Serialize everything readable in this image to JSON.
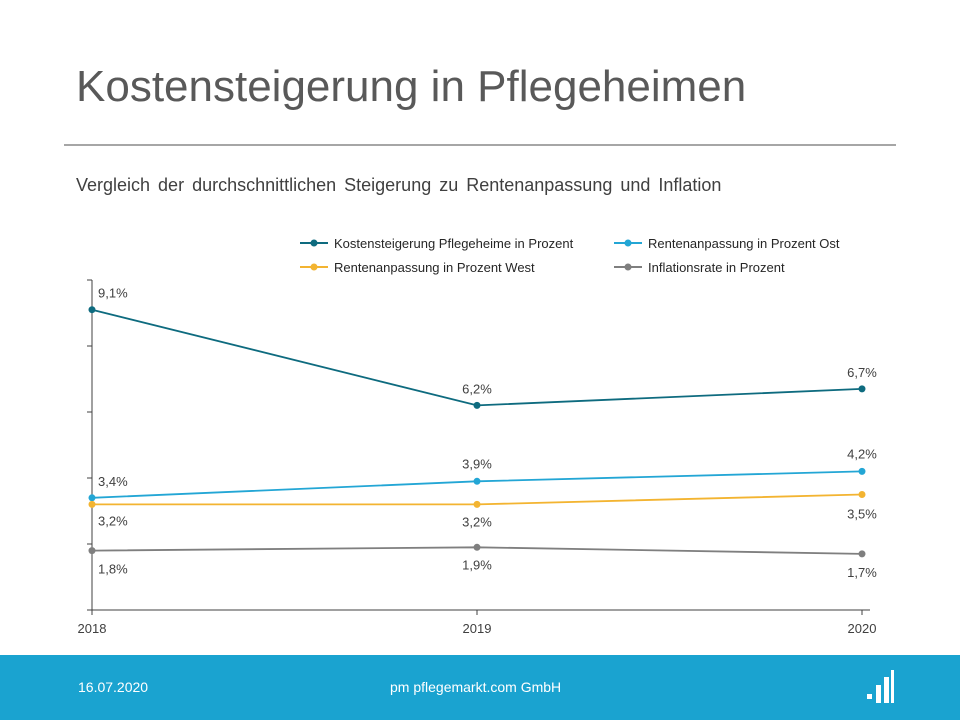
{
  "header": {
    "title": "Kostensteigerung in Pflegeheimen",
    "subtitle": "Vergleich der durchschnittlichen  Steigerung zu Rentenanpassung  und  Inflation"
  },
  "chart_data": {
    "type": "line",
    "categories": [
      "2018",
      "2019",
      "2020"
    ],
    "ylim": [
      0,
      10
    ],
    "grid": false,
    "legend_position": "top-right",
    "series": [
      {
        "name": "Kostensteigerung Pflegeheime in Prozent",
        "color": "#0e6b7f",
        "values": [
          9.1,
          6.2,
          6.7
        ],
        "labels": [
          "9,1%",
          "6,2%",
          "6,7%"
        ]
      },
      {
        "name": "Rentenanpassung in Prozent Ost",
        "color": "#23a6d5",
        "values": [
          3.4,
          3.9,
          4.2
        ],
        "labels": [
          "3,4%",
          "3,9%",
          "4,2%"
        ]
      },
      {
        "name": "Rentenanpassung in Prozent West",
        "color": "#f3b431",
        "values": [
          3.2,
          3.2,
          3.5
        ],
        "labels": [
          "3,2%",
          "3,2%",
          "3,5%"
        ]
      },
      {
        "name": "Inflationsrate in Prozent",
        "color": "#7f7f7f",
        "values": [
          1.8,
          1.9,
          1.7
        ],
        "labels": [
          "1,8%",
          "1,9%",
          "1,7%"
        ]
      }
    ]
  },
  "footer": {
    "date": "16.07.2020",
    "company": "pm pflegemarkt.com GmbH",
    "background_color": "#1aa3d0"
  }
}
